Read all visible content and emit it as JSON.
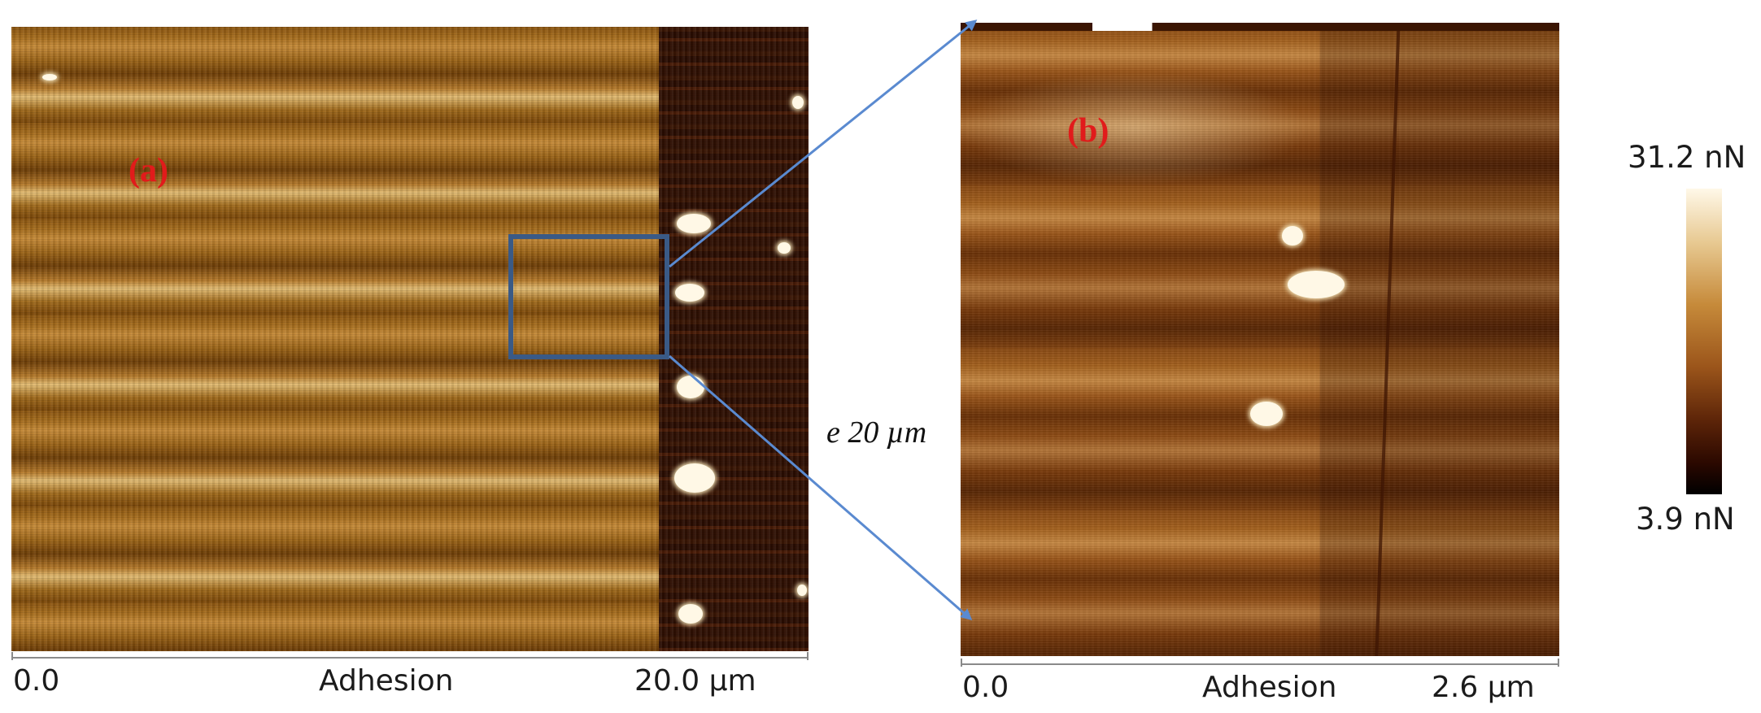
{
  "panels": {
    "a": {
      "label": "(a)",
      "axis_left": "0.0",
      "axis_center": "Adhesion",
      "axis_right": "20.0 µm"
    },
    "b": {
      "label": "(b)",
      "axis_left": "0.0",
      "axis_center": "Adhesion",
      "axis_right": "2.6 µm"
    }
  },
  "zoom_annotation": {
    "text": "e 20 µm"
  },
  "colorbar": {
    "max_label": "31.2 nN",
    "min_label": "3.9 nN",
    "colors": [
      "#fff8e8",
      "#c68a3a",
      "#5c2408",
      "#000000"
    ]
  },
  "accent_colors": {
    "panel_label": "#e11b1b",
    "zoom_box": "#3a5a86",
    "arrow": "#5a8ad0"
  }
}
